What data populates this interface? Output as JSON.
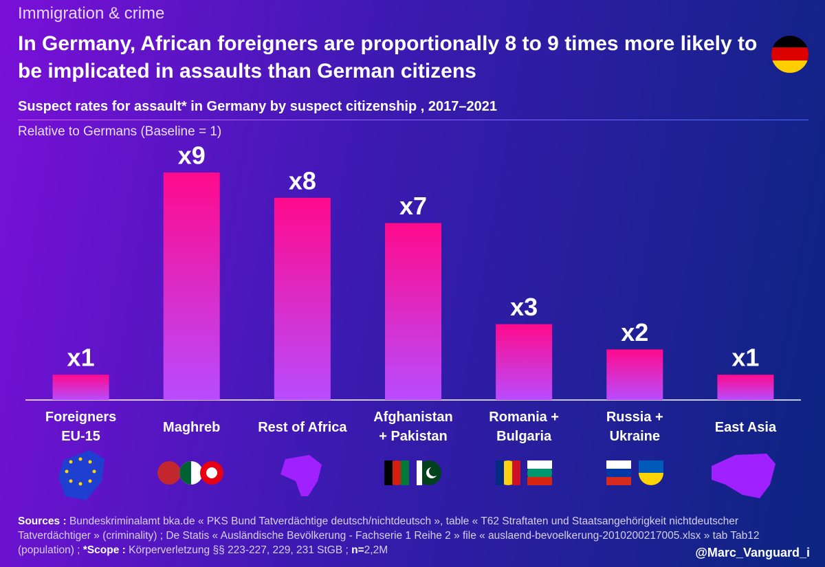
{
  "kicker": "Immigration & crime",
  "chart_data": {
    "type": "bar",
    "title": "In Germany, African foreigners are proportionally 8 to 9 times more likely to be implicated in assaults than German citizens",
    "subtitle": "Suspect rates for assault* in Germany by suspect citizenship , 2017–2021",
    "note": "Relative to Germans (Baseline = 1)",
    "categories": [
      "Foreigners\nEU-15",
      "Maghreb",
      "Rest of Africa",
      "Afghanistan\n+ Pakistan",
      "Romania +\nBulgaria",
      "Russia +\nUkraine",
      "East Asia"
    ],
    "values": [
      1,
      9,
      8,
      7,
      3,
      2,
      1
    ],
    "value_labels": [
      "x1",
      "x9",
      "x8",
      "x7",
      "x3",
      "x2",
      "x1"
    ],
    "colors": {
      "top": "#ff0a8c",
      "bottom": "#b84cff"
    }
  },
  "footer": {
    "sources_label": "Sources :",
    "sources": "Bundeskriminalamt bka.de « PKS Bund Tatverdächtige deutsch/nichtdeutsch », table « T62 Straftaten und Staatsangehörigkeit nichtdeutscher Tatverdächtiger » (criminality) ; De Statis « Ausländische Bevölkerung - Fachserie 1 Reihe 2 » file « auslaend-bevoelkerung-2010200217005.xlsx » tab Tab12 (population) ;",
    "scope_label": "*Scope :",
    "scope": "Körperverletzung §§ 223-227, 229, 231 StGB ;",
    "n_label": "n=",
    "n": "2,2M"
  },
  "handle": "@Marc_Vanguard_i"
}
